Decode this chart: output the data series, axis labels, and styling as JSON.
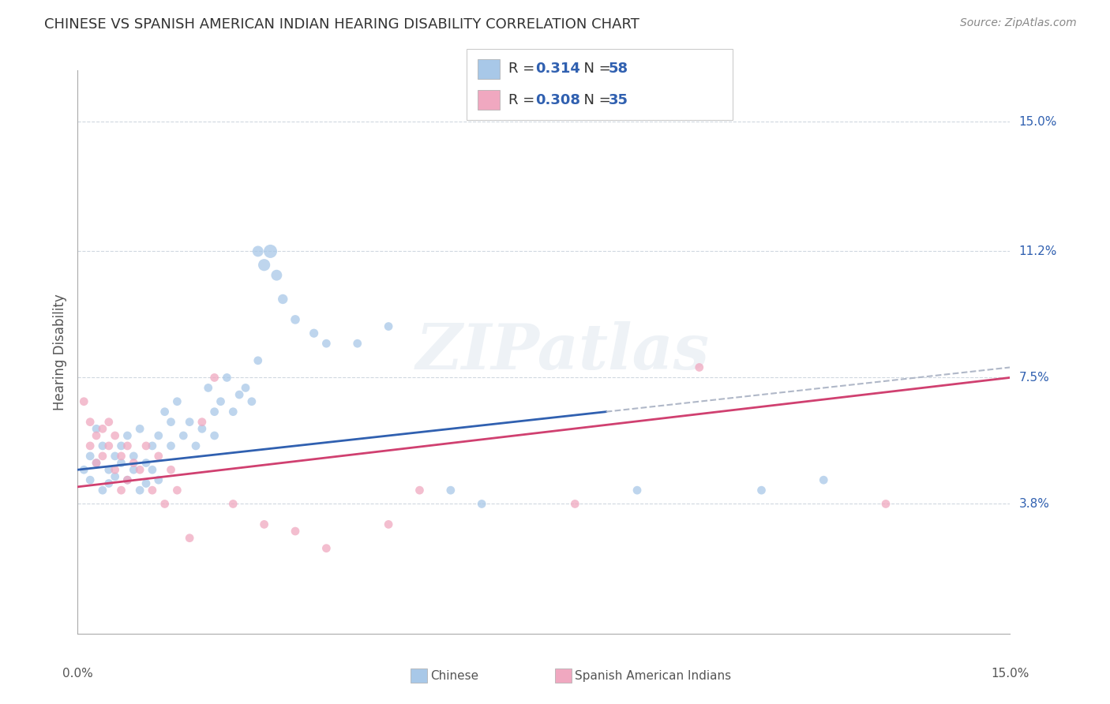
{
  "title": "CHINESE VS SPANISH AMERICAN INDIAN HEARING DISABILITY CORRELATION CHART",
  "source": "Source: ZipAtlas.com",
  "ylabel": "Hearing Disability",
  "ytick_labels": [
    "15.0%",
    "11.2%",
    "7.5%",
    "3.8%"
  ],
  "ytick_values": [
    0.15,
    0.112,
    0.075,
    0.038
  ],
  "xlim": [
    0.0,
    0.15
  ],
  "ylim": [
    0.0,
    0.165
  ],
  "legend_r_chinese": "0.314",
  "legend_n_chinese": "58",
  "legend_r_spanish": "0.308",
  "legend_n_spanish": "35",
  "chinese_color": "#a8c8e8",
  "spanish_color": "#f0a8c0",
  "trend_chinese_color": "#3060b0",
  "trend_spanish_color": "#d04070",
  "trend_ext_color": "#b0b8c8",
  "background_color": "#ffffff",
  "grid_color": "#d0d8e0",
  "watermark": "ZIPatlas",
  "chinese_scatter": [
    [
      0.001,
      0.048
    ],
    [
      0.002,
      0.052
    ],
    [
      0.002,
      0.045
    ],
    [
      0.003,
      0.05
    ],
    [
      0.003,
      0.06
    ],
    [
      0.004,
      0.042
    ],
    [
      0.004,
      0.055
    ],
    [
      0.005,
      0.048
    ],
    [
      0.005,
      0.044
    ],
    [
      0.006,
      0.052
    ],
    [
      0.006,
      0.046
    ],
    [
      0.007,
      0.05
    ],
    [
      0.007,
      0.055
    ],
    [
      0.008,
      0.045
    ],
    [
      0.008,
      0.058
    ],
    [
      0.009,
      0.048
    ],
    [
      0.009,
      0.052
    ],
    [
      0.01,
      0.042
    ],
    [
      0.01,
      0.06
    ],
    [
      0.011,
      0.05
    ],
    [
      0.011,
      0.044
    ],
    [
      0.012,
      0.055
    ],
    [
      0.012,
      0.048
    ],
    [
      0.013,
      0.058
    ],
    [
      0.013,
      0.045
    ],
    [
      0.014,
      0.065
    ],
    [
      0.015,
      0.055
    ],
    [
      0.015,
      0.062
    ],
    [
      0.016,
      0.068
    ],
    [
      0.017,
      0.058
    ],
    [
      0.018,
      0.062
    ],
    [
      0.019,
      0.055
    ],
    [
      0.02,
      0.06
    ],
    [
      0.021,
      0.072
    ],
    [
      0.022,
      0.065
    ],
    [
      0.022,
      0.058
    ],
    [
      0.023,
      0.068
    ],
    [
      0.024,
      0.075
    ],
    [
      0.025,
      0.065
    ],
    [
      0.026,
      0.07
    ],
    [
      0.027,
      0.072
    ],
    [
      0.028,
      0.068
    ],
    [
      0.029,
      0.08
    ],
    [
      0.029,
      0.112
    ],
    [
      0.03,
      0.108
    ],
    [
      0.031,
      0.112
    ],
    [
      0.032,
      0.105
    ],
    [
      0.033,
      0.098
    ],
    [
      0.035,
      0.092
    ],
    [
      0.038,
      0.088
    ],
    [
      0.04,
      0.085
    ],
    [
      0.045,
      0.085
    ],
    [
      0.05,
      0.09
    ],
    [
      0.06,
      0.042
    ],
    [
      0.065,
      0.038
    ],
    [
      0.09,
      0.042
    ],
    [
      0.11,
      0.042
    ],
    [
      0.12,
      0.045
    ]
  ],
  "spanish_scatter": [
    [
      0.001,
      0.068
    ],
    [
      0.002,
      0.055
    ],
    [
      0.002,
      0.062
    ],
    [
      0.003,
      0.058
    ],
    [
      0.003,
      0.05
    ],
    [
      0.004,
      0.06
    ],
    [
      0.004,
      0.052
    ],
    [
      0.005,
      0.055
    ],
    [
      0.005,
      0.062
    ],
    [
      0.006,
      0.048
    ],
    [
      0.006,
      0.058
    ],
    [
      0.007,
      0.052
    ],
    [
      0.007,
      0.042
    ],
    [
      0.008,
      0.055
    ],
    [
      0.008,
      0.045
    ],
    [
      0.009,
      0.05
    ],
    [
      0.01,
      0.048
    ],
    [
      0.011,
      0.055
    ],
    [
      0.012,
      0.042
    ],
    [
      0.013,
      0.052
    ],
    [
      0.014,
      0.038
    ],
    [
      0.015,
      0.048
    ],
    [
      0.016,
      0.042
    ],
    [
      0.018,
      0.028
    ],
    [
      0.02,
      0.062
    ],
    [
      0.022,
      0.075
    ],
    [
      0.025,
      0.038
    ],
    [
      0.03,
      0.032
    ],
    [
      0.035,
      0.03
    ],
    [
      0.04,
      0.025
    ],
    [
      0.05,
      0.032
    ],
    [
      0.055,
      0.042
    ],
    [
      0.08,
      0.038
    ],
    [
      0.1,
      0.078
    ],
    [
      0.13,
      0.038
    ]
  ],
  "chinese_sizes": [
    60,
    60,
    60,
    60,
    60,
    60,
    60,
    60,
    60,
    60,
    60,
    60,
    60,
    60,
    60,
    60,
    60,
    60,
    60,
    60,
    60,
    60,
    60,
    60,
    60,
    60,
    60,
    60,
    60,
    60,
    60,
    60,
    60,
    60,
    60,
    60,
    60,
    60,
    60,
    60,
    60,
    60,
    60,
    100,
    120,
    150,
    100,
    80,
    70,
    65,
    60,
    60,
    60,
    60,
    60,
    60,
    60,
    60
  ],
  "spanish_sizes": [
    60,
    60,
    60,
    60,
    60,
    60,
    60,
    60,
    60,
    60,
    60,
    60,
    60,
    60,
    60,
    60,
    60,
    60,
    60,
    60,
    60,
    60,
    60,
    60,
    60,
    60,
    60,
    60,
    60,
    60,
    60,
    60,
    60,
    60,
    60
  ]
}
